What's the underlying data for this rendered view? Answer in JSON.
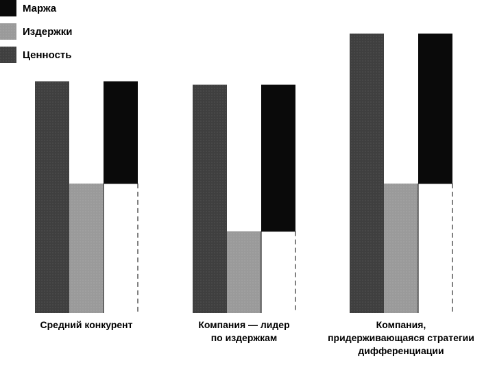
{
  "chart_data": {
    "type": "bar",
    "title": "",
    "xlabel": "",
    "ylabel": "",
    "legend_position": "top-left",
    "legend": [
      {
        "key": "margin",
        "label": "Маржа",
        "color": "#0a0a0a"
      },
      {
        "key": "costs",
        "label": "Издержки",
        "color": "#9a9a9a"
      },
      {
        "key": "value",
        "label": "Ценность",
        "color": "#3f3f3f"
      }
    ],
    "groups": [
      {
        "label_lines": [
          "Средний конкурент"
        ],
        "value": 340,
        "costs": 190,
        "margin": 150
      },
      {
        "label_lines": [
          "Компания — лидер",
          "по издержкам"
        ],
        "value": 335,
        "costs": 120,
        "margin": 215
      },
      {
        "label_lines": [
          "Компания,",
          "придерживающаяся стратегии",
          "дифференциации"
        ],
        "value": 410,
        "costs": 190,
        "margin": 220
      }
    ],
    "ylim": [
      0,
      410
    ],
    "grid": false
  }
}
